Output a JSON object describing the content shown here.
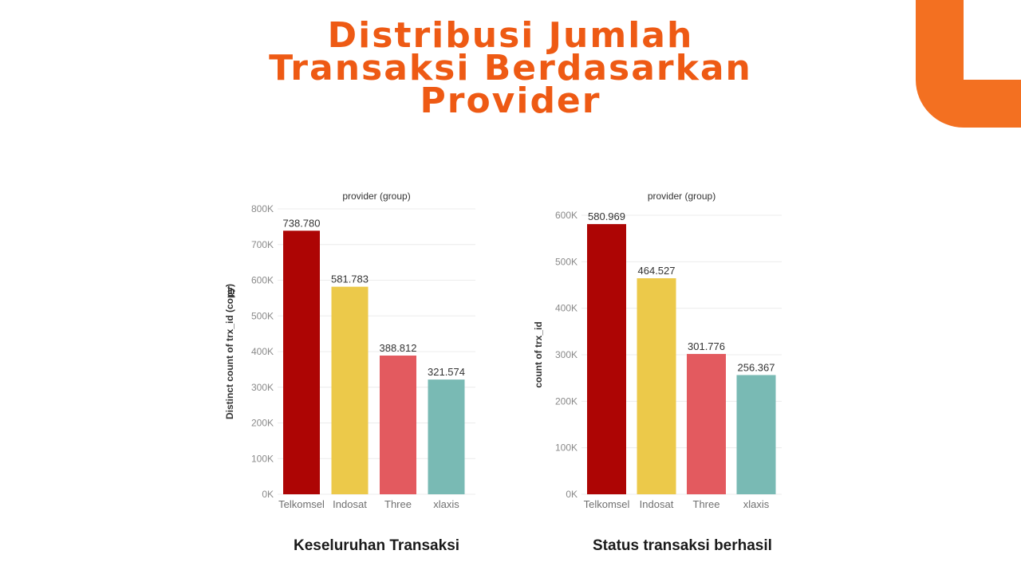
{
  "slide": {
    "title": "Distribusi Jumlah Transaksi Berdasarkan Provider",
    "accent_color": "#ee5a14",
    "decor_color": "#f37021"
  },
  "chart_data": [
    {
      "type": "bar",
      "title": "provider (group)",
      "xlabel": "",
      "ylabel": "Distinct count of trx_id (copy)",
      "categories": [
        "Telkomsel",
        "Indosat",
        "Three",
        "xlaxis"
      ],
      "values": [
        738780,
        581783,
        388812,
        321574
      ],
      "value_labels": [
        "738.780",
        "581.783",
        "388.812",
        "321.574"
      ],
      "colors": [
        "#ad0504",
        "#ecc94a",
        "#e35a5f",
        "#79bab4"
      ],
      "ylim": [
        0,
        800000
      ],
      "yticks": [
        0,
        100000,
        200000,
        300000,
        400000,
        500000,
        600000,
        700000,
        800000
      ],
      "ytick_labels": [
        "0K",
        "100K",
        "200K",
        "300K",
        "400K",
        "500K",
        "600K",
        "700K",
        "800K"
      ],
      "grid": true,
      "caption": "Keseluruhan Transaksi"
    },
    {
      "type": "bar",
      "title": "provider (group)",
      "xlabel": "",
      "ylabel": "count of trx_id",
      "categories": [
        "Telkomsel",
        "Indosat",
        "Three",
        "xlaxis"
      ],
      "values": [
        580969,
        464527,
        301776,
        256367
      ],
      "value_labels": [
        "580.969",
        "464.527",
        "301.776",
        "256.367"
      ],
      "colors": [
        "#ad0504",
        "#ecc94a",
        "#e35a5f",
        "#79bab4"
      ],
      "ylim": [
        0,
        600000
      ],
      "yticks": [
        0,
        100000,
        200000,
        300000,
        400000,
        500000,
        600000
      ],
      "ytick_labels": [
        "0K",
        "100K",
        "200K",
        "300K",
        "400K",
        "500K",
        "600K"
      ],
      "grid": true,
      "caption": "Status transaksi berhasil"
    }
  ]
}
